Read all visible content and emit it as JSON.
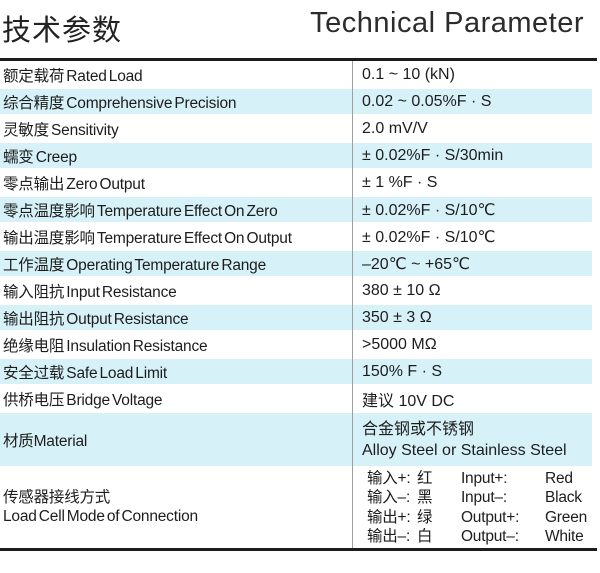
{
  "header": {
    "title_cn": "技术参数",
    "title_en": "Technical Parameter"
  },
  "table": {
    "rows": [
      {
        "label": "额定载荷 Rated Load",
        "value": "0.1 ~ 10 (kN)"
      },
      {
        "label": "综合精度 Comprehensive Precision",
        "value": "0.02 ~ 0.05%F · S"
      },
      {
        "label": "灵敏度 Sensitivity",
        "value": "2.0 mV/V"
      },
      {
        "label": "蠕变 Creep",
        "value": "± 0.02%F · S/30min"
      },
      {
        "label": "零点输出 Zero Output",
        "value": "± 1 %F · S"
      },
      {
        "label": "零点温度影响 Temperature Effect On Zero",
        "value": "± 0.02%F · S/10℃"
      },
      {
        "label": "输出温度影响 Temperature Effect On Output",
        "value": "± 0.02%F · S/10℃"
      },
      {
        "label": "工作温度 Operating Temperature Range",
        "value": "–20℃ ~ +65℃"
      },
      {
        "label": "输入阻抗 Input Resistance",
        "value": "380 ± 10 Ω"
      },
      {
        "label": "输出阻抗 Output Resistance",
        "value": "350 ± 3 Ω"
      },
      {
        "label": "绝缘电阻 Insulation Resistance",
        "value": ">5000 MΩ"
      },
      {
        "label": "安全过载 Safe Load Limit",
        "value": "150% F · S"
      },
      {
        "label": "供桥电压 Bridge Voltage",
        "value": "建议 10V DC"
      }
    ],
    "material": {
      "label": "材质Material",
      "value_cn": "合金钢或不锈钢",
      "value_en": "Alloy Steel or Stainless Steel"
    },
    "connection": {
      "label_cn": "传感器接线方式",
      "label_en": "Load Cell Mode of Connection",
      "lines": [
        {
          "cn_label": "输入+:",
          "cn_color": "红",
          "en_label": "Input+:",
          "en_color": "Red"
        },
        {
          "cn_label": "输入–:",
          "cn_color": "黑",
          "en_label": "Input–:",
          "en_color": "Black"
        },
        {
          "cn_label": "输出+:",
          "cn_color": "绿",
          "en_label": "Output+:",
          "en_color": "Green"
        },
        {
          "cn_label": "输出–:",
          "cn_color": "白",
          "en_label": "Output–:",
          "en_color": "White"
        }
      ]
    }
  },
  "colors": {
    "stripe": "#d7f1f9",
    "rule": "#1c1c1c",
    "divider": "#9ca0a2",
    "text": "#1d1d1d"
  }
}
